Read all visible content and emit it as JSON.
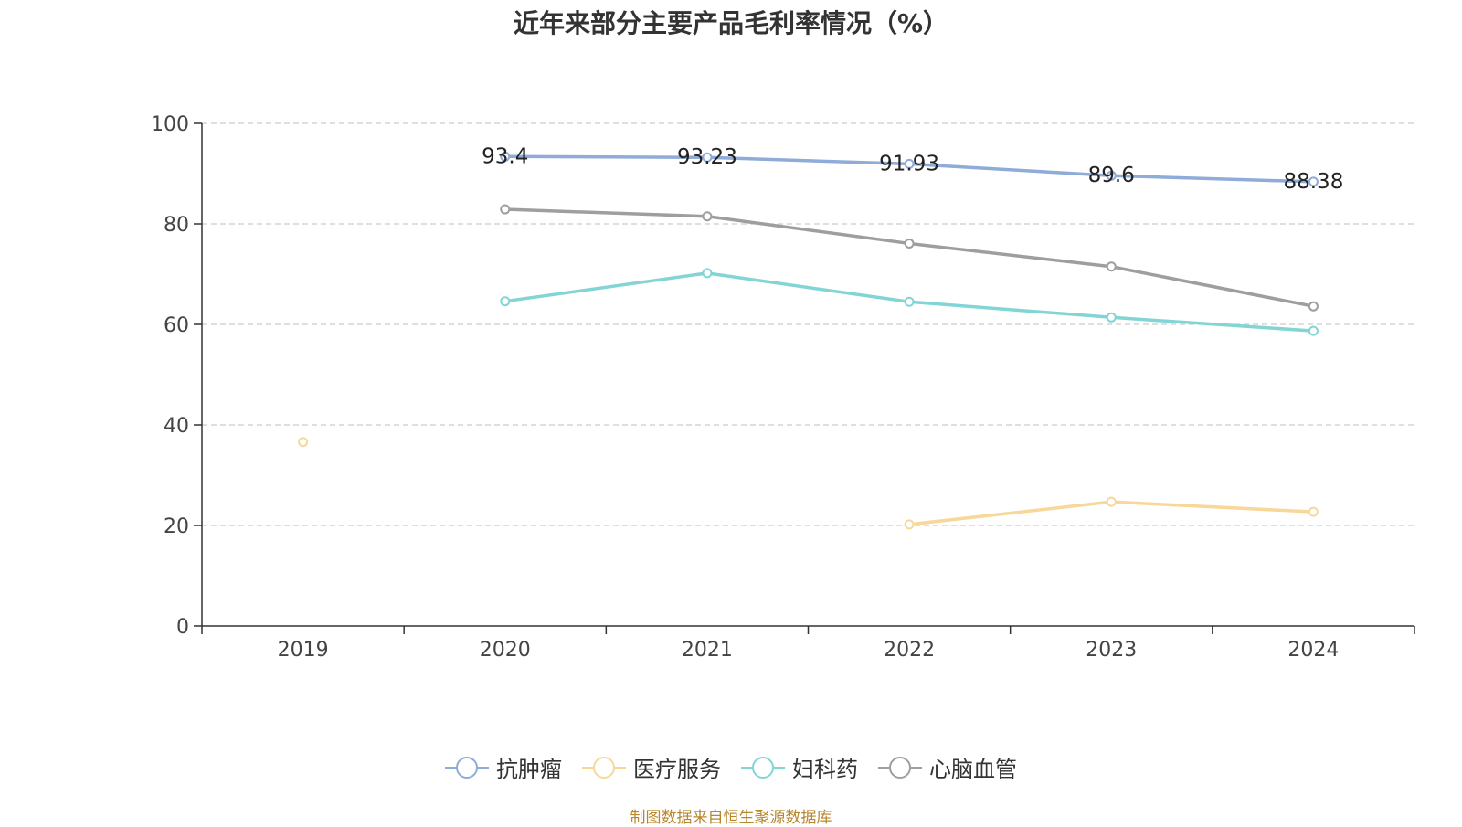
{
  "chart_data": {
    "type": "line",
    "title": "近年来部分主要产品毛利率情况（%）",
    "categories": [
      "2019",
      "2020",
      "2021",
      "2022",
      "2023",
      "2024"
    ],
    "ylim": [
      0,
      100
    ],
    "y_ticks": [
      "0",
      "20",
      "40",
      "60",
      "80",
      "100"
    ],
    "grid": true,
    "legend_position": "bottom",
    "series": [
      {
        "name": "抗肿瘤",
        "color": "#8fabd8",
        "values": [
          null,
          93.4,
          93.23,
          91.93,
          89.6,
          88.38
        ],
        "labels": [
          null,
          "93.4",
          "93.23",
          "91.93",
          "89.6",
          "88.38"
        ]
      },
      {
        "name": "医疗服务",
        "color": "#f8d89a",
        "values": [
          36.6,
          null,
          null,
          20.2,
          24.7,
          22.7
        ]
      },
      {
        "name": "妇科药",
        "color": "#83d5d5",
        "values": [
          null,
          64.6,
          70.2,
          64.5,
          61.4,
          58.7
        ]
      },
      {
        "name": "心脑血管",
        "color": "#9e9e9e",
        "values": [
          null,
          82.9,
          81.5,
          76.1,
          71.5,
          63.6
        ]
      }
    ]
  },
  "source_note": "制图数据来自恒生聚源数据库"
}
